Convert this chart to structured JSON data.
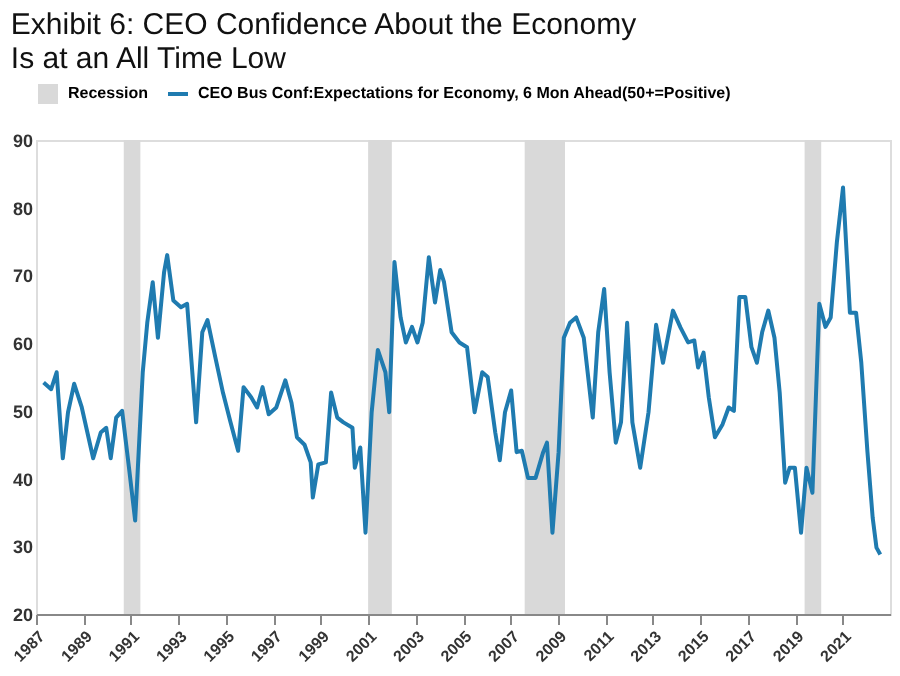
{
  "chart_data": {
    "type": "line",
    "title": "Exhibit 6:  CEO Confidence About the Economy Is at an All Time Low",
    "x": [
      1987.32,
      1987.64,
      1987.87,
      1988.13,
      1988.35,
      1988.61,
      1988.93,
      1989.41,
      1989.73,
      1989.96,
      1990.15,
      1990.38,
      1990.63,
      1990.92,
      1991.18,
      1991.5,
      1991.69,
      1991.92,
      1992.14,
      1992.4,
      1992.53,
      1992.79,
      1993.11,
      1993.37,
      1993.75,
      1994.01,
      1994.23,
      1994.56,
      1994.88,
      1995.2,
      1995.52,
      1995.75,
      1996.07,
      1996.32,
      1996.55,
      1996.81,
      1997.13,
      1997.51,
      1997.77,
      1998.0,
      1998.32,
      1998.58,
      1998.67,
      1998.9,
      1999.22,
      1999.44,
      1999.7,
      1999.96,
      2000.34,
      2000.44,
      2000.67,
      2000.89,
      2001.15,
      2001.41,
      2001.73,
      2001.89,
      2002.11,
      2002.37,
      2002.59,
      2002.85,
      2003.08,
      2003.3,
      2003.56,
      2003.82,
      2004.04,
      2004.2,
      2004.52,
      2004.85,
      2005.17,
      2005.49,
      2005.81,
      2006.04,
      2006.36,
      2006.55,
      2006.77,
      2007.03,
      2007.26,
      2007.48,
      2007.74,
      2008.06,
      2008.38,
      2008.54,
      2008.77,
      2009.03,
      2009.25,
      2009.51,
      2009.77,
      2010.09,
      2010.47,
      2010.7,
      2010.95,
      2011.18,
      2011.44,
      2011.66,
      2011.92,
      2012.14,
      2012.47,
      2012.82,
      2013.14,
      2013.43,
      2013.85,
      2014.17,
      2014.49,
      2014.75,
      2014.91,
      2015.14,
      2015.36,
      2015.62,
      2015.94,
      2016.2,
      2016.42,
      2016.65,
      2016.9,
      2017.16,
      2017.39,
      2017.61,
      2017.87,
      2018.13,
      2018.35,
      2018.58,
      2018.77,
      2018.99,
      2019.25,
      2019.48,
      2019.73,
      2020.02,
      2020.28,
      2020.5,
      2020.76,
      2021.02,
      2021.31,
      2021.57,
      2021.79,
      2022.05,
      2022.27,
      2022.43,
      2022.59
    ],
    "series": [
      {
        "name": "CEO Bus Conf:Expectations for Economy, 6 Mon Ahead(50+=Positive)",
        "color": "#1f7bb0",
        "values": [
          54.2,
          53.2,
          55.7,
          43,
          49.8,
          54,
          50.5,
          43,
          46.8,
          47.5,
          43,
          49,
          50,
          41.6,
          33.8,
          55.7,
          63,
          69,
          60.8,
          70.5,
          73,
          66.3,
          65.3,
          65.8,
          48.3,
          61.6,
          63.4,
          57.9,
          52.7,
          48.3,
          44.1,
          53.5,
          52,
          50.5,
          53.5,
          49.5,
          50.5,
          54.5,
          51.2,
          46.1,
          45,
          42.4,
          37.2,
          42.1,
          42.4,
          52.7,
          49,
          48.3,
          47.5,
          41.6,
          44.6,
          32,
          49.8,
          59,
          55.7,
          49.8,
          72,
          63.8,
          60.1,
          62.4,
          60.1,
          63,
          72.7,
          66,
          70.8,
          69,
          61.6,
          60.1,
          59.4,
          49.8,
          55.7,
          55,
          46.8,
          42.7,
          49.8,
          53,
          43.9,
          44.1,
          40.1,
          40.1,
          43.9,
          45.3,
          32,
          43.9,
          60.8,
          63,
          63.8,
          60.8,
          49,
          61.6,
          68,
          55.7,
          45.3,
          48.3,
          63,
          48.3,
          41.6,
          49.8,
          62.7,
          57.1,
          64.8,
          62.3,
          60.1,
          60.4,
          56.4,
          58.6,
          52,
          46.1,
          48,
          50.5,
          50,
          66.8,
          66.8,
          59.4,
          57.1,
          61.6,
          64.8,
          60.8,
          52.7,
          39.4,
          41.6,
          41.6,
          32,
          41.6,
          37.9,
          65.8,
          62.4,
          63.8,
          74.9,
          83,
          64.5,
          64.5,
          57.1,
          43.9,
          34.2,
          29.8,
          28.8
        ]
      }
    ],
    "bands": [
      {
        "axis": "x",
        "from": 1990.7,
        "to": 1991.4,
        "label": "Recession",
        "color": "#d9d9d9"
      },
      {
        "axis": "x",
        "from": 2001.0,
        "to": 2002.0,
        "color": "#d9d9d9"
      },
      {
        "axis": "x",
        "from": 2007.6,
        "to": 2009.3,
        "color": "#d9d9d9"
      },
      {
        "axis": "x",
        "from": 2019.4,
        "to": 2020.1,
        "color": "#d9d9d9"
      }
    ],
    "xlim": [
      1987,
      2023
    ],
    "xticks": [
      1987,
      1989,
      1991,
      1993,
      1995,
      1997,
      1999,
      2001,
      2003,
      2005,
      2007,
      2009,
      2011,
      2013,
      2015,
      2017,
      2019,
      2021
    ],
    "ylim": [
      20,
      90
    ],
    "yticks": [
      20,
      30,
      40,
      50,
      60,
      70,
      80,
      90
    ],
    "grid": false,
    "legend": "top",
    "marker": "none",
    "line_style": "solid"
  }
}
